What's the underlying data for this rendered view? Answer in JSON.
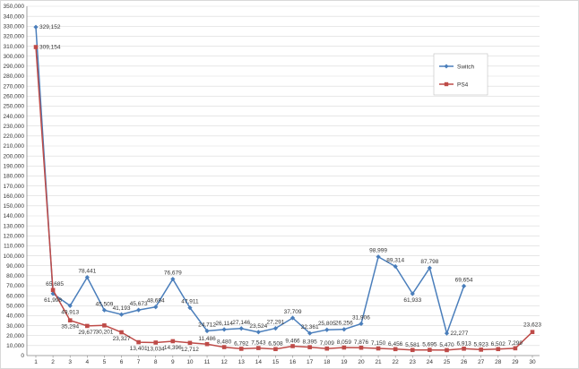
{
  "chart_data": {
    "type": "line",
    "x": [
      1,
      2,
      3,
      4,
      5,
      6,
      7,
      8,
      9,
      10,
      11,
      12,
      13,
      14,
      15,
      16,
      17,
      18,
      19,
      20,
      21,
      22,
      23,
      24,
      25,
      26,
      27,
      28,
      29,
      30
    ],
    "ylim": [
      0,
      350000
    ],
    "ytick_step": 10000,
    "grid": true,
    "legend_position": "top-right",
    "series": [
      {
        "name": "Switch",
        "color": "#4a7ebb",
        "marker": "diamond",
        "values": [
          329152,
          61998,
          49913,
          78441,
          45509,
          41193,
          45673,
          48694,
          76679,
          47911,
          24712,
          26114,
          27146,
          23524,
          27291,
          37709,
          22361,
          25805,
          26256,
          31906,
          98999,
          89314,
          61933,
          87798,
          22277,
          69654,
          null,
          null,
          null,
          null
        ],
        "labels": [
          "329,152",
          "61,998",
          "49,913",
          "78,441",
          "45,509",
          "41,193",
          "45,673",
          "48,694",
          "76,679",
          "47,911",
          "24,712",
          "26,114",
          "27,146",
          "23,524",
          "27,291",
          "37,709",
          "22,361",
          "25,805",
          "26,256",
          "31,906",
          "98,999",
          "89,314",
          "61,933",
          "87,798",
          "22,277",
          "69,654",
          "",
          "",
          "",
          ""
        ]
      },
      {
        "name": "PS4",
        "color": "#be4b48",
        "marker": "square",
        "values": [
          309154,
          65685,
          35294,
          29677,
          30201,
          23327,
          13401,
          13034,
          14396,
          12712,
          11486,
          8480,
          6792,
          7543,
          6508,
          9466,
          8395,
          7009,
          8059,
          7876,
          7150,
          6456,
          5581,
          5695,
          5470,
          6913,
          5923,
          6502,
          7299,
          23623
        ],
        "labels": [
          "309,154",
          "65,685",
          "35,294",
          "29,677",
          "30,201",
          "23,327",
          "13,401",
          "13,034",
          "14,396",
          "12,712",
          "11,486",
          "8,480",
          "6,792",
          "7,543",
          "6,508",
          "9,466",
          "8,395",
          "7,009",
          "8,059",
          "7,876",
          "7,150",
          "6,456",
          "5,581",
          "5,695",
          "5,470",
          "6,913",
          "5,923",
          "6,502",
          "7,299",
          "23,623"
        ]
      }
    ]
  }
}
